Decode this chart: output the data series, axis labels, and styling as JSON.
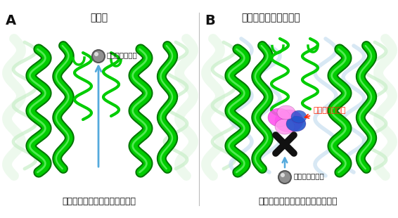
{
  "fig_width": 5.66,
  "fig_height": 3.1,
  "dpi": 100,
  "bg_color": "#ffffff",
  "panel_A_title": "通常時",
  "panel_B_title": "アステミゾールが結合",
  "label_A": "A",
  "label_B": "B",
  "caption_A": "カリウムイオンが輸送路を通過",
  "caption_B": "カリウムイオンの通過をブロック",
  "ion_label": "カリウムイオン",
  "astemizole_label": "アステミゾール",
  "helix_green": "#00cc00",
  "helix_green_dark": "#007700",
  "helix_light": "#99ee99",
  "helix_faint": "#c8eec8",
  "helix_veryfaint": "#ddf5dd",
  "ion_color": "#909090",
  "ion_edge": "#555555",
  "arrow_color": "#55aadd",
  "astemizole_magenta": "#ff55ee",
  "astemizole_blue": "#2255cc",
  "astemizole_light_magenta": "#ff99ee",
  "cross_color": "#111111",
  "text_red": "#ff2200",
  "text_black": "#111111",
  "watermark_color": "#c8dff0"
}
